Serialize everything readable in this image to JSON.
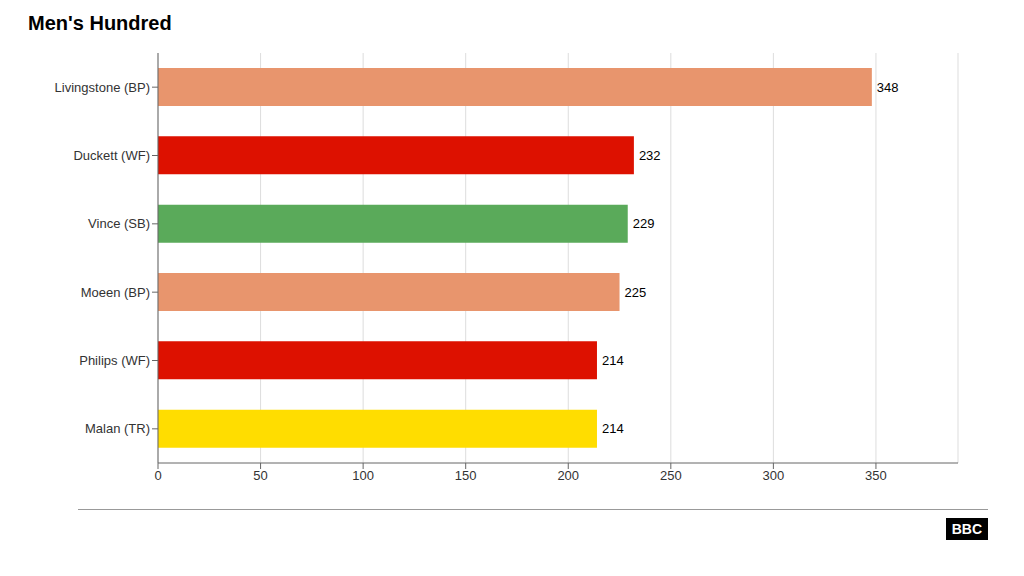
{
  "chart_data": {
    "type": "bar",
    "title": "Men's Hundred",
    "orientation": "horizontal",
    "categories": [
      "Malan (TR)",
      "Philips (WF)",
      "Moeen (BP)",
      "Vince (SB)",
      "Duckett (WF)",
      "Livingstone (BP)"
    ],
    "values": [
      214,
      214,
      225,
      229,
      232,
      348
    ],
    "colors": [
      "#ffdd00",
      "#dd1100",
      "#e8956d",
      "#5aaa5a",
      "#dd1100",
      "#e8956d"
    ],
    "xlim": [
      0,
      390
    ],
    "xticks": [
      0,
      50,
      100,
      150,
      200,
      250,
      300,
      350
    ],
    "grid": true,
    "data_labels": true,
    "annotations": [
      "BBC"
    ]
  }
}
